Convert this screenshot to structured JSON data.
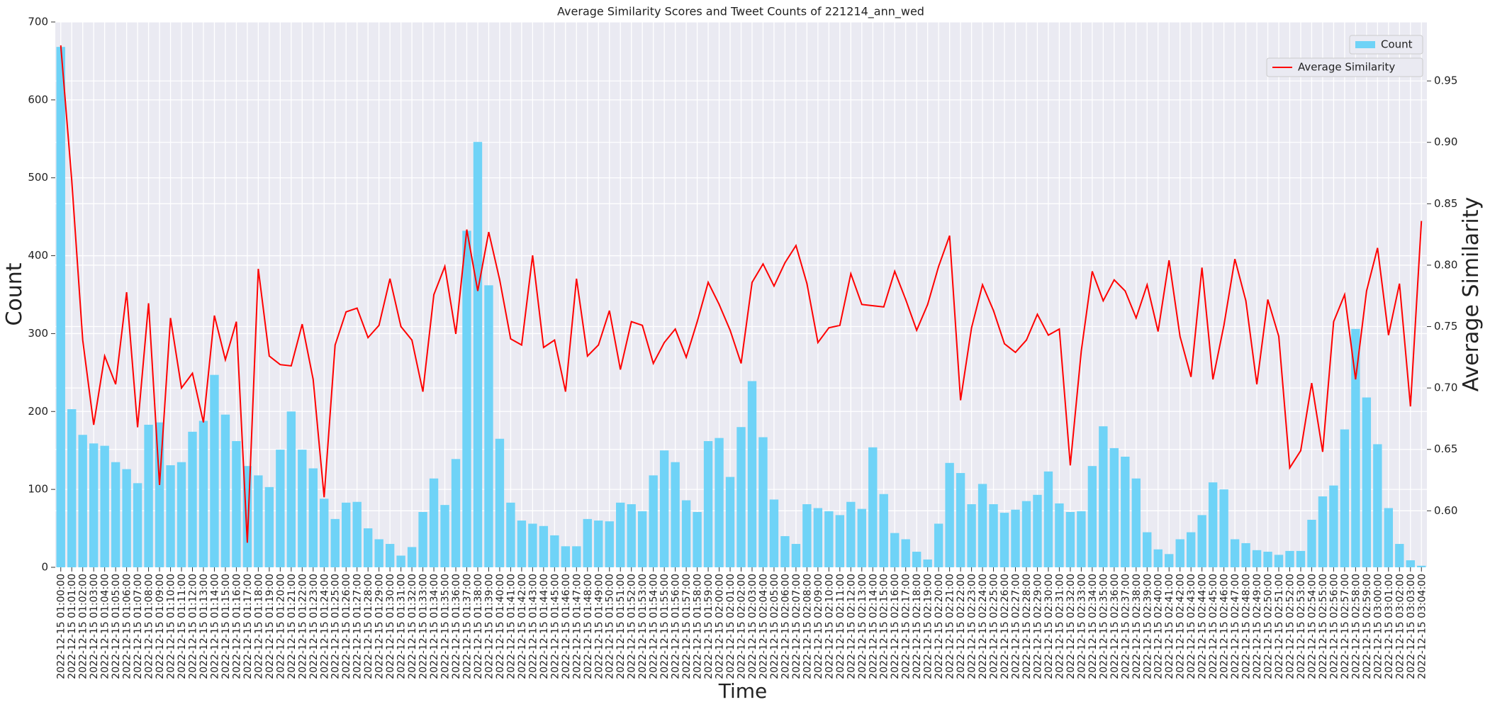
{
  "chart_data": {
    "type": "bar",
    "title": "Average Similarity Scores and Tweet Counts of 221214_ann_wed",
    "x_label": "Time",
    "y_label": "Count",
    "y2_label": "Average Similarity",
    "categories": [
      "2022-12-15 01:00:00",
      "2022-12-15 01:01:00",
      "2022-12-15 01:02:00",
      "2022-12-15 01:03:00",
      "2022-12-15 01:04:00",
      "2022-12-15 01:05:00",
      "2022-12-15 01:06:00",
      "2022-12-15 01:07:00",
      "2022-12-15 01:08:00",
      "2022-12-15 01:09:00",
      "2022-12-15 01:10:00",
      "2022-12-15 01:11:00",
      "2022-12-15 01:12:00",
      "2022-12-15 01:13:00",
      "2022-12-15 01:14:00",
      "2022-12-15 01:15:00",
      "2022-12-15 01:16:00",
      "2022-12-15 01:17:00",
      "2022-12-15 01:18:00",
      "2022-12-15 01:19:00",
      "2022-12-15 01:20:00",
      "2022-12-15 01:21:00",
      "2022-12-15 01:22:00",
      "2022-12-15 01:23:00",
      "2022-12-15 01:24:00",
      "2022-12-15 01:25:00",
      "2022-12-15 01:26:00",
      "2022-12-15 01:27:00",
      "2022-12-15 01:28:00",
      "2022-12-15 01:29:00",
      "2022-12-15 01:30:00",
      "2022-12-15 01:31:00",
      "2022-12-15 01:32:00",
      "2022-12-15 01:33:00",
      "2022-12-15 01:34:00",
      "2022-12-15 01:35:00",
      "2022-12-15 01:36:00",
      "2022-12-15 01:37:00",
      "2022-12-15 01:38:00",
      "2022-12-15 01:39:00",
      "2022-12-15 01:40:00",
      "2022-12-15 01:41:00",
      "2022-12-15 01:42:00",
      "2022-12-15 01:43:00",
      "2022-12-15 01:44:00",
      "2022-12-15 01:45:00",
      "2022-12-15 01:46:00",
      "2022-12-15 01:47:00",
      "2022-12-15 01:48:00",
      "2022-12-15 01:49:00",
      "2022-12-15 01:50:00",
      "2022-12-15 01:51:00",
      "2022-12-15 01:52:00",
      "2022-12-15 01:53:00",
      "2022-12-15 01:54:00",
      "2022-12-15 01:55:00",
      "2022-12-15 01:56:00",
      "2022-12-15 01:57:00",
      "2022-12-15 01:58:00",
      "2022-12-15 01:59:00",
      "2022-12-15 02:00:00",
      "2022-12-15 02:01:00",
      "2022-12-15 02:02:00",
      "2022-12-15 02:03:00",
      "2022-12-15 02:04:00",
      "2022-12-15 02:05:00",
      "2022-12-15 02:06:00",
      "2022-12-15 02:07:00",
      "2022-12-15 02:08:00",
      "2022-12-15 02:09:00",
      "2022-12-15 02:10:00",
      "2022-12-15 02:11:00",
      "2022-12-15 02:12:00",
      "2022-12-15 02:13:00",
      "2022-12-15 02:14:00",
      "2022-12-15 02:15:00",
      "2022-12-15 02:16:00",
      "2022-12-15 02:17:00",
      "2022-12-15 02:18:00",
      "2022-12-15 02:19:00",
      "2022-12-15 02:20:00",
      "2022-12-15 02:21:00",
      "2022-12-15 02:22:00",
      "2022-12-15 02:23:00",
      "2022-12-15 02:24:00",
      "2022-12-15 02:25:00",
      "2022-12-15 02:26:00",
      "2022-12-15 02:27:00",
      "2022-12-15 02:28:00",
      "2022-12-15 02:29:00",
      "2022-12-15 02:30:00",
      "2022-12-15 02:31:00",
      "2022-12-15 02:32:00",
      "2022-12-15 02:33:00",
      "2022-12-15 02:34:00",
      "2022-12-15 02:35:00",
      "2022-12-15 02:36:00",
      "2022-12-15 02:37:00",
      "2022-12-15 02:38:00",
      "2022-12-15 02:39:00",
      "2022-12-15 02:40:00",
      "2022-12-15 02:41:00",
      "2022-12-15 02:42:00",
      "2022-12-15 02:43:00",
      "2022-12-15 02:44:00",
      "2022-12-15 02:45:00",
      "2022-12-15 02:46:00",
      "2022-12-15 02:47:00",
      "2022-12-15 02:48:00",
      "2022-12-15 02:49:00",
      "2022-12-15 02:50:00",
      "2022-12-15 02:51:00",
      "2022-12-15 02:52:00",
      "2022-12-15 02:53:00",
      "2022-12-15 02:54:00",
      "2022-12-15 02:55:00",
      "2022-12-15 02:56:00",
      "2022-12-15 02:57:00",
      "2022-12-15 02:58:00",
      "2022-12-15 02:59:00",
      "2022-12-15 03:00:00",
      "2022-12-15 03:01:00",
      "2022-12-15 03:02:00",
      "2022-12-15 03:03:00",
      "2022-12-15 03:04:00"
    ],
    "series": [
      {
        "name": "Count",
        "type": "bar",
        "color": "#6fd3f7",
        "values": [
          668,
          203,
          170,
          159,
          156,
          135,
          126,
          108,
          183,
          186,
          131,
          135,
          174,
          188,
          247,
          196,
          162,
          130,
          118,
          103,
          151,
          200,
          151,
          127,
          88,
          62,
          83,
          84,
          50,
          36,
          30,
          15,
          26,
          71,
          114,
          80,
          139,
          432,
          546,
          362,
          165,
          83,
          60,
          56,
          53,
          41,
          27,
          27,
          62,
          60,
          59,
          83,
          81,
          72,
          118,
          150,
          135,
          86,
          71,
          162,
          166,
          116,
          180,
          239,
          167,
          87,
          40,
          30,
          81,
          76,
          72,
          67,
          84,
          75,
          154,
          94,
          44,
          36,
          20,
          10,
          56,
          134,
          121,
          81,
          107,
          81,
          70,
          74,
          85,
          93,
          123,
          82,
          71,
          72,
          130,
          181,
          153,
          142,
          114,
          45,
          23,
          17,
          36,
          45,
          67,
          109,
          100,
          36,
          31,
          22,
          20,
          16,
          21,
          21,
          61,
          91,
          105,
          177,
          306,
          218,
          158,
          76,
          30,
          9,
          2
        ]
      },
      {
        "name": "Average Similarity",
        "type": "line",
        "color": "#ff0000",
        "axis": "y2",
        "values": [
          0.979,
          0.869,
          0.739,
          0.67,
          0.726,
          0.703,
          0.778,
          0.668,
          0.769,
          0.621,
          0.757,
          0.7,
          0.712,
          0.672,
          0.759,
          0.723,
          0.754,
          0.574,
          0.797,
          0.726,
          0.719,
          0.718,
          0.752,
          0.707,
          0.611,
          0.735,
          0.762,
          0.765,
          0.741,
          0.751,
          0.789,
          0.75,
          0.739,
          0.697,
          0.776,
          0.799,
          0.744,
          0.829,
          0.779,
          0.827,
          0.788,
          0.74,
          0.735,
          0.808,
          0.733,
          0.739,
          0.697,
          0.789,
          0.726,
          0.735,
          0.763,
          0.715,
          0.754,
          0.751,
          0.72,
          0.737,
          0.748,
          0.725,
          0.754,
          0.786,
          0.768,
          0.747,
          0.72,
          0.786,
          0.801,
          0.783,
          0.802,
          0.816,
          0.785,
          0.737,
          0.749,
          0.751,
          0.793,
          0.768,
          0.767,
          0.766,
          0.795,
          0.772,
          0.747,
          0.768,
          0.799,
          0.824,
          0.69,
          0.749,
          0.784,
          0.763,
          0.736,
          0.729,
          0.739,
          0.76,
          0.743,
          0.748,
          0.637,
          0.73,
          0.795,
          0.771,
          0.788,
          0.779,
          0.757,
          0.784,
          0.746,
          0.804,
          0.742,
          0.709,
          0.798,
          0.707,
          0.751,
          0.805,
          0.771,
          0.703,
          0.772,
          0.742,
          0.635,
          0.649,
          0.704,
          0.648,
          0.754,
          0.776,
          0.707,
          0.779,
          0.814,
          0.743,
          0.785,
          0.685,
          0.836
        ]
      }
    ],
    "ylim": [
      0,
      700
    ],
    "yticks": [
      0,
      100,
      200,
      300,
      400,
      500,
      600,
      700
    ],
    "y2lim": [
      0.554,
      0.998
    ],
    "y2ticks": [
      {
        "value": 0.6,
        "label": "0.60"
      },
      0.65,
      {
        "value": 0.7,
        "label": "0.70"
      },
      0.75,
      {
        "value": 0.8,
        "label": "0.80"
      },
      0.85,
      {
        "value": 0.9,
        "label": "0.90"
      },
      0.95
    ],
    "grid": true,
    "legend": "upper right"
  }
}
